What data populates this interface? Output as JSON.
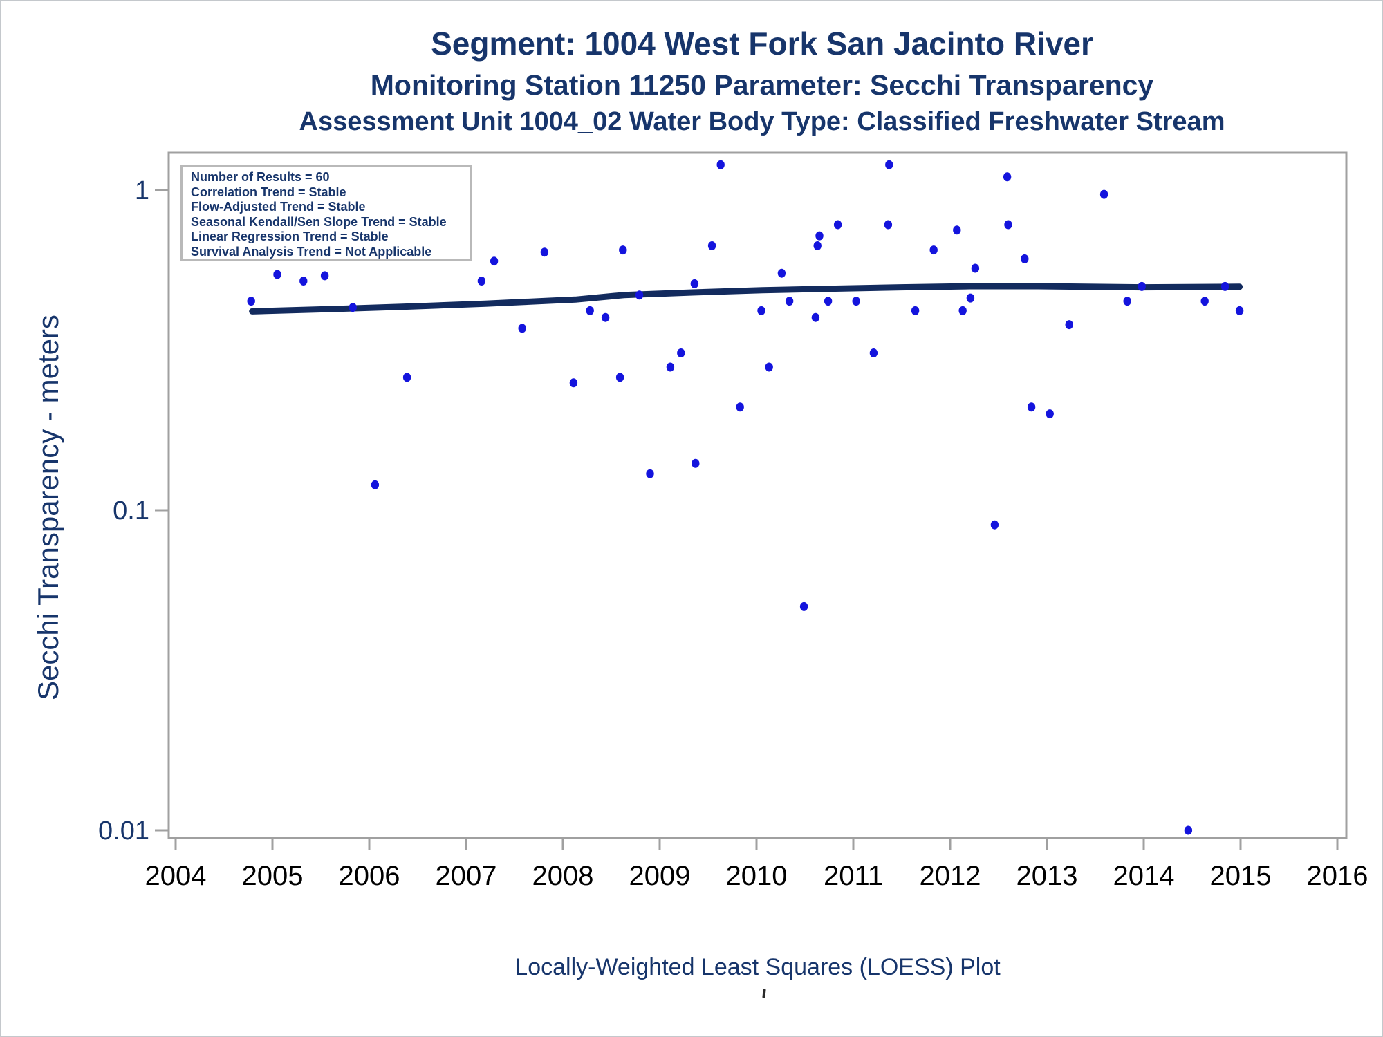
{
  "page": {
    "title_line1": "Segment: 1004  West Fork San Jacinto River",
    "title_line2": "Monitoring Station 11250 Parameter: Secchi Transparency",
    "title_line3": "Assessment Unit 1004_02   Water Body Type: Classified Freshwater Stream",
    "caption": "Locally-Weighted Least Squares (LOESS) Plot"
  },
  "stats_box": {
    "lines": [
      "Number of Results = 60",
      "Correlation Trend = Stable",
      "Flow-Adjusted Trend = Stable",
      "Seasonal Kendall/Sen Slope Trend = Stable",
      "Linear Regression Trend = Stable",
      "Survival Analysis Trend = Not Applicable"
    ]
  },
  "colors": {
    "navy_text": "#17356b",
    "x_tick_text": "#000000",
    "frame_gray": "#a0a0a0",
    "marker_blue": "#1414dd",
    "loess_navy": "#132b5e"
  },
  "chart_data": {
    "type": "scatter",
    "title": "Segment: 1004  West Fork San Jacinto River",
    "subtitle1": "Monitoring Station 11250 Parameter: Secchi Transparency",
    "subtitle2": "Assessment Unit 1004_02   Water Body Type: Classified Freshwater Stream",
    "xlabel": "",
    "ylabel": "Secchi Transparency - meters",
    "y_scale": "log10",
    "xlim": [
      2003.93,
      2016.39
    ],
    "ylim": [
      0.0097,
      1.31
    ],
    "grid": false,
    "legend_position": "none",
    "x_ticks": [
      2004,
      2005,
      2006,
      2007,
      2008,
      2009,
      2010,
      2011,
      2012,
      2013,
      2014,
      2015,
      2016
    ],
    "y_ticks": [
      {
        "value": 1,
        "label": "1"
      },
      {
        "value": 0.1,
        "label": "0.1"
      },
      {
        "value": 0.01,
        "label": "0.01"
      }
    ],
    "points": [
      [
        2004.78,
        0.45
      ],
      [
        2005.05,
        0.545
      ],
      [
        2005.32,
        0.52
      ],
      [
        2005.54,
        0.54
      ],
      [
        2005.83,
        0.43
      ],
      [
        2006.06,
        0.12
      ],
      [
        2006.39,
        0.26
      ],
      [
        2006.54,
        0.64
      ],
      [
        2007.16,
        0.52
      ],
      [
        2007.29,
        0.6
      ],
      [
        2007.58,
        0.37
      ],
      [
        2007.81,
        0.64
      ],
      [
        2008.11,
        0.25
      ],
      [
        2008.28,
        0.42
      ],
      [
        2008.44,
        0.4
      ],
      [
        2008.59,
        0.26
      ],
      [
        2008.62,
        0.65
      ],
      [
        2008.79,
        0.47
      ],
      [
        2008.9,
        0.13
      ],
      [
        2009.11,
        0.28
      ],
      [
        2009.22,
        0.31
      ],
      [
        2009.36,
        0.51
      ],
      [
        2009.37,
        0.14
      ],
      [
        2009.54,
        0.67
      ],
      [
        2009.63,
        1.2
      ],
      [
        2009.83,
        0.21
      ],
      [
        2010.05,
        0.42
      ],
      [
        2010.13,
        0.28
      ],
      [
        2010.26,
        0.55
      ],
      [
        2010.34,
        0.45
      ],
      [
        2010.49,
        0.05
      ],
      [
        2010.61,
        0.4
      ],
      [
        2010.63,
        0.67
      ],
      [
        2010.65,
        0.72
      ],
      [
        2010.74,
        0.45
      ],
      [
        2010.84,
        0.78
      ],
      [
        2011.03,
        0.45
      ],
      [
        2011.21,
        0.31
      ],
      [
        2011.36,
        0.78
      ],
      [
        2011.37,
        1.2
      ],
      [
        2011.64,
        0.42
      ],
      [
        2011.83,
        0.65
      ],
      [
        2012.07,
        0.75
      ],
      [
        2012.13,
        0.42
      ],
      [
        2012.21,
        0.46
      ],
      [
        2012.26,
        0.57
      ],
      [
        2012.46,
        0.09
      ],
      [
        2012.59,
        1.1
      ],
      [
        2012.6,
        0.78
      ],
      [
        2012.77,
        0.61
      ],
      [
        2012.84,
        0.21
      ],
      [
        2013.03,
        0.2
      ],
      [
        2013.23,
        0.38
      ],
      [
        2013.59,
        0.97
      ],
      [
        2013.83,
        0.45
      ],
      [
        2013.98,
        0.5
      ],
      [
        2014.46,
        0.01
      ],
      [
        2014.63,
        0.45
      ],
      [
        2014.84,
        0.5
      ],
      [
        2014.99,
        0.42
      ]
    ],
    "loess_line": [
      [
        2004.79,
        0.418
      ],
      [
        2005.5,
        0.424
      ],
      [
        2006.34,
        0.432
      ],
      [
        2007.2,
        0.442
      ],
      [
        2008.13,
        0.455
      ],
      [
        2008.63,
        0.47
      ],
      [
        2009.34,
        0.479
      ],
      [
        2010.06,
        0.487
      ],
      [
        2010.77,
        0.492
      ],
      [
        2011.49,
        0.497
      ],
      [
        2012.2,
        0.501
      ],
      [
        2012.91,
        0.501
      ],
      [
        2013.99,
        0.497
      ],
      [
        2014.99,
        0.499
      ]
    ]
  }
}
